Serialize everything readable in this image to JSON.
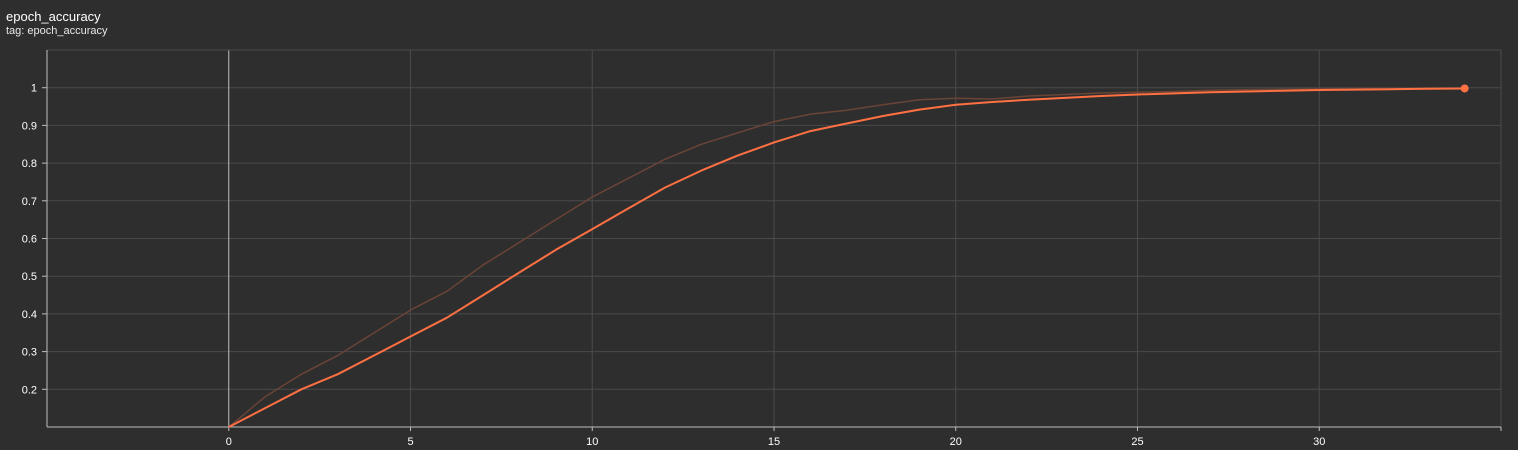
{
  "header": {
    "title": "epoch_accuracy",
    "tag": "tag: epoch_accuracy"
  },
  "colors": {
    "background": "#2e2e2e",
    "grid": "#4a4a4a",
    "axis": "#bdbdbd",
    "smoothed": "#ff7043",
    "raw": "#6a4437"
  },
  "chart_data": {
    "type": "line",
    "title": "epoch_accuracy",
    "xlabel": "",
    "ylabel": "",
    "xlim": [
      -5,
      35
    ],
    "ylim": [
      0.1,
      1.1
    ],
    "xticks": [
      0,
      5,
      10,
      15,
      20,
      25,
      30
    ],
    "yticks": [
      0.2,
      0.3,
      0.4,
      0.5,
      0.6,
      0.7,
      0.8,
      0.9,
      1
    ],
    "grid": true,
    "series": [
      {
        "role": "raw",
        "x": [
          0,
          1,
          2,
          3,
          4,
          5,
          6,
          7,
          8,
          9,
          10,
          11,
          12,
          13,
          14,
          15,
          16,
          17,
          18,
          19,
          20,
          21,
          22,
          23,
          24,
          25,
          26,
          27,
          28,
          29,
          30,
          31,
          32,
          33,
          34
        ],
        "y": [
          0.1,
          0.18,
          0.24,
          0.29,
          0.35,
          0.41,
          0.46,
          0.53,
          0.59,
          0.65,
          0.71,
          0.76,
          0.81,
          0.85,
          0.88,
          0.91,
          0.93,
          0.94,
          0.955,
          0.968,
          0.972,
          0.97,
          0.978,
          0.982,
          0.986,
          0.988,
          0.99,
          0.993,
          0.995,
          0.996,
          0.997,
          0.998,
          0.998,
          0.999,
          0.999
        ]
      },
      {
        "role": "smoothed",
        "x": [
          0,
          1,
          2,
          3,
          4,
          5,
          6,
          7,
          8,
          9,
          10,
          11,
          12,
          13,
          14,
          15,
          16,
          17,
          18,
          19,
          20,
          21,
          22,
          23,
          24,
          25,
          26,
          27,
          28,
          29,
          30,
          31,
          32,
          33,
          34
        ],
        "y": [
          0.1,
          0.15,
          0.2,
          0.24,
          0.29,
          0.34,
          0.39,
          0.45,
          0.51,
          0.57,
          0.625,
          0.68,
          0.735,
          0.78,
          0.82,
          0.855,
          0.885,
          0.905,
          0.925,
          0.942,
          0.955,
          0.962,
          0.968,
          0.973,
          0.978,
          0.982,
          0.985,
          0.988,
          0.99,
          0.992,
          0.994,
          0.995,
          0.996,
          0.997,
          0.998
        ]
      }
    ]
  }
}
